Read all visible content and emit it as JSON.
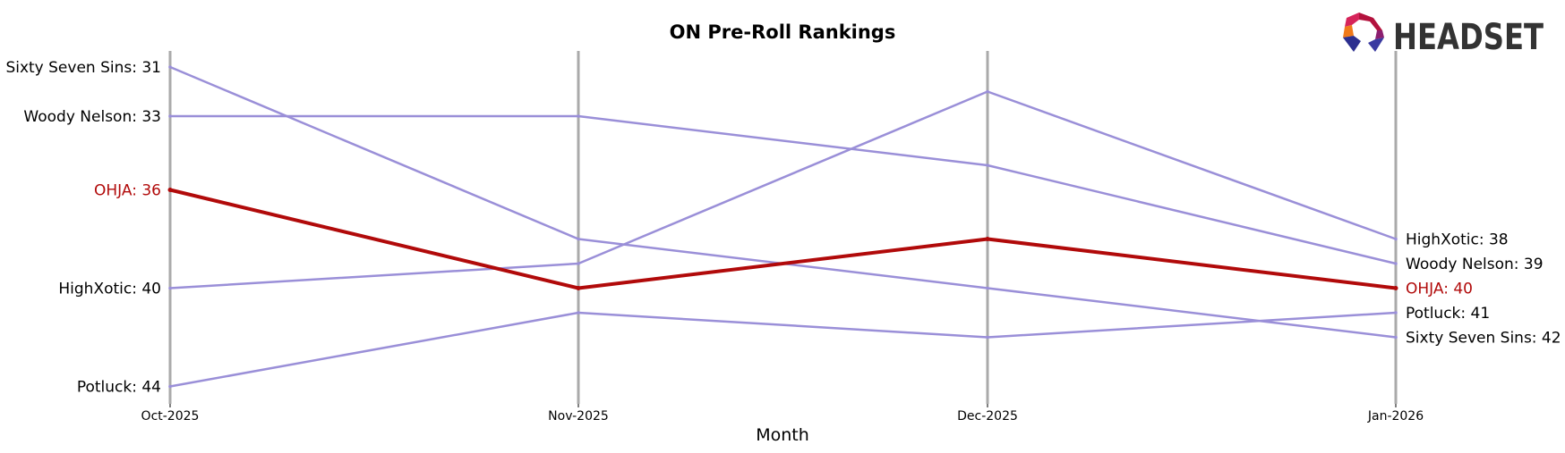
{
  "logo": {
    "text": "HEADSET"
  },
  "colors": {
    "highlight": "#b10a0a",
    "series": "#9a8fd8",
    "axis": "#aaaaaa",
    "logo_text": "#333333"
  },
  "chart_data": {
    "type": "line",
    "title": "ON Pre-Roll Rankings",
    "xlabel": "Month",
    "ylabel": "",
    "categories": [
      "Oct-2025",
      "Nov-2025",
      "Dec-2025",
      "Jan-2026"
    ],
    "y_inverted": true,
    "ylim": [
      45,
      30
    ],
    "grid": false,
    "highlight_series": "OHJA",
    "series": [
      {
        "name": "Sixty Seven Sins",
        "values": [
          31,
          38,
          40,
          42
        ]
      },
      {
        "name": "Woody Nelson",
        "values": [
          33,
          33,
          35,
          39
        ]
      },
      {
        "name": "OHJA",
        "values": [
          36,
          40,
          38,
          40
        ]
      },
      {
        "name": "HighXotic",
        "values": [
          40,
          39,
          32,
          38
        ]
      },
      {
        "name": "Potluck",
        "values": [
          44,
          41,
          42,
          41
        ]
      }
    ],
    "start_labels": [
      {
        "series": "Sixty Seven Sins",
        "text": "Sixty Seven Sins: 31"
      },
      {
        "series": "Woody Nelson",
        "text": "Woody Nelson: 33"
      },
      {
        "series": "OHJA",
        "text": "OHJA: 36"
      },
      {
        "series": "HighXotic",
        "text": "HighXotic: 40"
      },
      {
        "series": "Potluck",
        "text": "Potluck: 44"
      }
    ],
    "end_labels": [
      {
        "series": "HighXotic",
        "text": "HighXotic: 38"
      },
      {
        "series": "Woody Nelson",
        "text": "Woody Nelson: 39"
      },
      {
        "series": "OHJA",
        "text": "OHJA: 40"
      },
      {
        "series": "Potluck",
        "text": "Potluck: 41"
      },
      {
        "series": "Sixty Seven Sins",
        "text": "Sixty Seven Sins: 42"
      }
    ]
  }
}
